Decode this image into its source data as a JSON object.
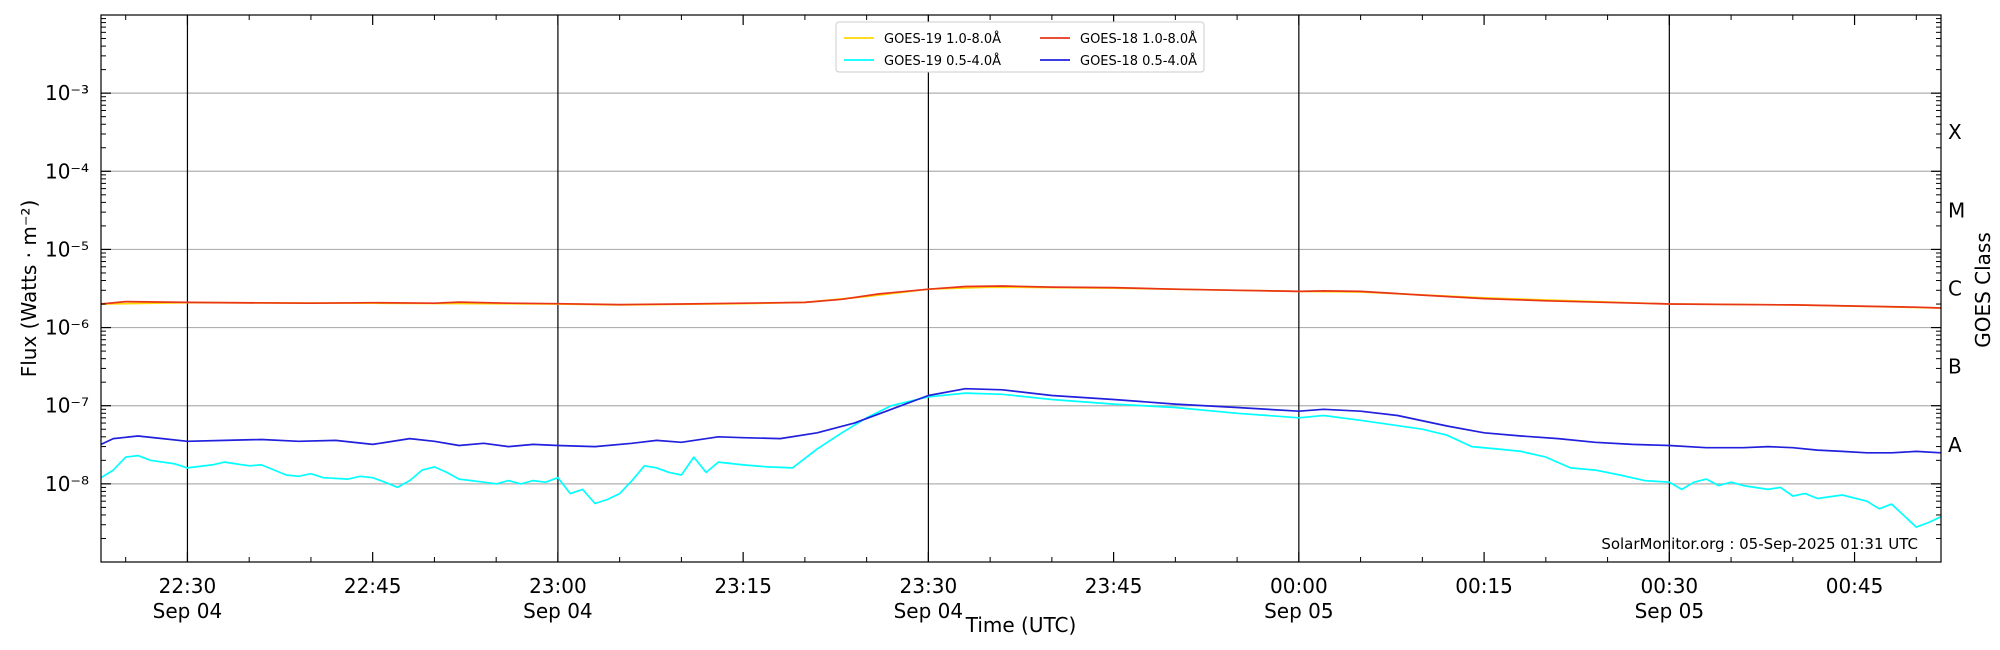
{
  "chart_data": {
    "type": "line",
    "title": "",
    "xlabel": "Time (UTC)",
    "ylabel": "Flux (Watts · m⁻²)",
    "ylabel_right": "GOES Class",
    "y_scale": "log",
    "ylim": [
      1e-09,
      0.01
    ],
    "xlim": [
      "2025-09-04T22:23",
      "2025-09-05T00:52"
    ],
    "grid": "horizontal at decades",
    "legend_placement": "top-center",
    "y_ticks": [
      {
        "value": 1e-08,
        "label": "10⁻⁸"
      },
      {
        "value": 1e-07,
        "label": "10⁻⁷"
      },
      {
        "value": 1e-06,
        "label": "10⁻⁶"
      },
      {
        "value": 1e-05,
        "label": "10⁻⁵"
      },
      {
        "value": 0.0001,
        "label": "10⁻⁴"
      },
      {
        "value": 0.001,
        "label": "10⁻³"
      }
    ],
    "goes_classes": [
      {
        "label": "A",
        "value": 1e-08
      },
      {
        "label": "B",
        "value": 1e-07
      },
      {
        "label": "C",
        "value": 1e-06
      },
      {
        "label": "M",
        "value": 1e-05
      },
      {
        "label": "X",
        "value": 0.0001
      }
    ],
    "x_ticks": [
      {
        "time": "22:30",
        "label": "22:30",
        "date": "Sep 04",
        "major": true
      },
      {
        "time": "22:45",
        "label": "22:45",
        "date": "",
        "major": false
      },
      {
        "time": "23:00",
        "label": "23:00",
        "date": "Sep 04",
        "major": true
      },
      {
        "time": "23:15",
        "label": "23:15",
        "date": "",
        "major": false
      },
      {
        "time": "23:30",
        "label": "23:30",
        "date": "Sep 04",
        "major": true
      },
      {
        "time": "23:45",
        "label": "23:45",
        "date": "",
        "major": false
      },
      {
        "time": "00:00",
        "label": "00:00",
        "date": "Sep 05",
        "major": true
      },
      {
        "time": "00:15",
        "label": "00:15",
        "date": "",
        "major": false
      },
      {
        "time": "00:30",
        "label": "00:30",
        "date": "Sep 05",
        "major": true
      },
      {
        "time": "00:45",
        "label": "00:45",
        "date": "",
        "major": false
      }
    ],
    "series": [
      {
        "name": "GOES-19 1.0-8.0Å",
        "color": "#FFD700",
        "points": [
          [
            "22:23",
            2e-06
          ],
          [
            "22:30",
            2.08e-06
          ],
          [
            "22:45",
            2.05e-06
          ],
          [
            "23:00",
            2e-06
          ],
          [
            "23:05",
            1.95e-06
          ],
          [
            "23:15",
            2.02e-06
          ],
          [
            "23:20",
            2.1e-06
          ],
          [
            "23:25",
            2.5e-06
          ],
          [
            "23:30",
            3.1e-06
          ],
          [
            "23:35",
            3.3e-06
          ],
          [
            "23:45",
            3.2e-06
          ],
          [
            "23:55",
            3e-06
          ],
          [
            "00:00",
            2.9e-06
          ],
          [
            "00:05",
            2.85e-06
          ],
          [
            "00:15",
            2.4e-06
          ],
          [
            "00:30",
            2e-06
          ],
          [
            "00:40",
            1.95e-06
          ],
          [
            "00:52",
            1.78e-06
          ]
        ]
      },
      {
        "name": "GOES-18 1.0-8.0Å",
        "color": "#E8351A",
        "points": [
          [
            "22:23",
            2e-06
          ],
          [
            "22:25",
            2.15e-06
          ],
          [
            "22:30",
            2.1e-06
          ],
          [
            "22:40",
            2.05e-06
          ],
          [
            "22:45",
            2.08e-06
          ],
          [
            "22:50",
            2.05e-06
          ],
          [
            "22:52",
            2.12e-06
          ],
          [
            "22:56",
            2.05e-06
          ],
          [
            "23:00",
            2.02e-06
          ],
          [
            "23:05",
            1.97e-06
          ],
          [
            "23:10",
            2e-06
          ],
          [
            "23:15",
            2.05e-06
          ],
          [
            "23:20",
            2.1e-06
          ],
          [
            "23:23",
            2.3e-06
          ],
          [
            "23:26",
            2.7e-06
          ],
          [
            "23:30",
            3.1e-06
          ],
          [
            "23:33",
            3.35e-06
          ],
          [
            "23:36",
            3.4e-06
          ],
          [
            "23:40",
            3.3e-06
          ],
          [
            "23:45",
            3.25e-06
          ],
          [
            "23:50",
            3.1e-06
          ],
          [
            "23:55",
            3e-06
          ],
          [
            "00:00",
            2.9e-06
          ],
          [
            "00:02",
            2.95e-06
          ],
          [
            "00:05",
            2.9e-06
          ],
          [
            "00:10",
            2.6e-06
          ],
          [
            "00:15",
            2.35e-06
          ],
          [
            "00:20",
            2.2e-06
          ],
          [
            "00:30",
            2e-06
          ],
          [
            "00:40",
            1.95e-06
          ],
          [
            "00:50",
            1.82e-06
          ],
          [
            "00:52",
            1.78e-06
          ]
        ]
      },
      {
        "name": "GOES-19 0.5-4.0Å",
        "color": "#00FFFF",
        "points": [
          [
            "22:23",
            1.2e-08
          ],
          [
            "22:24",
            1.5e-08
          ],
          [
            "22:25",
            2.2e-08
          ],
          [
            "22:26",
            2.3e-08
          ],
          [
            "22:27",
            2e-08
          ],
          [
            "22:29",
            1.8e-08
          ],
          [
            "22:30",
            1.6e-08
          ],
          [
            "22:32",
            1.75e-08
          ],
          [
            "22:33",
            1.9e-08
          ],
          [
            "22:35",
            1.7e-08
          ],
          [
            "22:36",
            1.75e-08
          ],
          [
            "22:38",
            1.3e-08
          ],
          [
            "22:39",
            1.25e-08
          ],
          [
            "22:40",
            1.35e-08
          ],
          [
            "22:41",
            1.2e-08
          ],
          [
            "22:43",
            1.15e-08
          ],
          [
            "22:44",
            1.25e-08
          ],
          [
            "22:45",
            1.2e-08
          ],
          [
            "22:46",
            1.05e-08
          ],
          [
            "22:47",
            9e-09
          ],
          [
            "22:48",
            1.1e-08
          ],
          [
            "22:49",
            1.5e-08
          ],
          [
            "22:50",
            1.65e-08
          ],
          [
            "22:51",
            1.4e-08
          ],
          [
            "22:52",
            1.15e-08
          ],
          [
            "22:54",
            1.05e-08
          ],
          [
            "22:55",
            1e-08
          ],
          [
            "22:56",
            1.1e-08
          ],
          [
            "22:57",
            1e-08
          ],
          [
            "22:58",
            1.1e-08
          ],
          [
            "22:59",
            1.05e-08
          ],
          [
            "23:00",
            1.2e-08
          ],
          [
            "23:01",
            7.5e-09
          ],
          [
            "23:02",
            8.5e-09
          ],
          [
            "23:03",
            5.6e-09
          ],
          [
            "23:04",
            6.3e-09
          ],
          [
            "23:05",
            7.5e-09
          ],
          [
            "23:06",
            1.1e-08
          ],
          [
            "23:07",
            1.7e-08
          ],
          [
            "23:08",
            1.6e-08
          ],
          [
            "23:09",
            1.4e-08
          ],
          [
            "23:10",
            1.3e-08
          ],
          [
            "23:11",
            2.2e-08
          ],
          [
            "23:12",
            1.4e-08
          ],
          [
            "23:13",
            1.9e-08
          ],
          [
            "23:15",
            1.75e-08
          ],
          [
            "23:17",
            1.65e-08
          ],
          [
            "23:19",
            1.6e-08
          ],
          [
            "23:21",
            2.8e-08
          ],
          [
            "23:23",
            4.5e-08
          ],
          [
            "23:25",
            7e-08
          ],
          [
            "23:27",
            1e-07
          ],
          [
            "23:30",
            1.3e-07
          ],
          [
            "23:33",
            1.45e-07
          ],
          [
            "23:36",
            1.4e-07
          ],
          [
            "23:40",
            1.2e-07
          ],
          [
            "23:45",
            1.05e-07
          ],
          [
            "23:50",
            9.5e-08
          ],
          [
            "23:55",
            8e-08
          ],
          [
            "00:00",
            7e-08
          ],
          [
            "00:02",
            7.5e-08
          ],
          [
            "00:05",
            6.5e-08
          ],
          [
            "00:10",
            5e-08
          ],
          [
            "00:12",
            4.2e-08
          ],
          [
            "00:14",
            3e-08
          ],
          [
            "00:16",
            2.8e-08
          ],
          [
            "00:18",
            2.6e-08
          ],
          [
            "00:20",
            2.2e-08
          ],
          [
            "00:22",
            1.6e-08
          ],
          [
            "00:24",
            1.5e-08
          ],
          [
            "00:26",
            1.3e-08
          ],
          [
            "00:28",
            1.1e-08
          ],
          [
            "00:30",
            1.05e-08
          ],
          [
            "00:31",
            8.5e-09
          ],
          [
            "00:32",
            1.05e-08
          ],
          [
            "00:33",
            1.15e-08
          ],
          [
            "00:34",
            9.5e-09
          ],
          [
            "00:35",
            1.05e-08
          ],
          [
            "00:36",
            9.5e-09
          ],
          [
            "00:38",
            8.5e-09
          ],
          [
            "00:39",
            9e-09
          ],
          [
            "00:40",
            7e-09
          ],
          [
            "00:41",
            7.5e-09
          ],
          [
            "00:42",
            6.5e-09
          ],
          [
            "00:44",
            7.2e-09
          ],
          [
            "00:46",
            6e-09
          ],
          [
            "00:47",
            4.8e-09
          ],
          [
            "00:48",
            5.5e-09
          ],
          [
            "00:50",
            2.8e-09
          ],
          [
            "00:51",
            3.2e-09
          ],
          [
            "00:52",
            3.8e-09
          ]
        ]
      },
      {
        "name": "GOES-18 0.5-4.0Å",
        "color": "#2020DD",
        "points": [
          [
            "22:23",
            3.2e-08
          ],
          [
            "22:24",
            3.8e-08
          ],
          [
            "22:26",
            4.1e-08
          ],
          [
            "22:28",
            3.8e-08
          ],
          [
            "22:30",
            3.5e-08
          ],
          [
            "22:33",
            3.6e-08
          ],
          [
            "22:36",
            3.7e-08
          ],
          [
            "22:39",
            3.5e-08
          ],
          [
            "22:42",
            3.6e-08
          ],
          [
            "22:45",
            3.2e-08
          ],
          [
            "22:48",
            3.8e-08
          ],
          [
            "22:50",
            3.5e-08
          ],
          [
            "22:52",
            3.1e-08
          ],
          [
            "22:54",
            3.3e-08
          ],
          [
            "22:56",
            3e-08
          ],
          [
            "22:58",
            3.2e-08
          ],
          [
            "23:00",
            3.1e-08
          ],
          [
            "23:03",
            3e-08
          ],
          [
            "23:06",
            3.3e-08
          ],
          [
            "23:08",
            3.6e-08
          ],
          [
            "23:10",
            3.4e-08
          ],
          [
            "23:13",
            4e-08
          ],
          [
            "23:15",
            3.9e-08
          ],
          [
            "23:18",
            3.8e-08
          ],
          [
            "23:21",
            4.5e-08
          ],
          [
            "23:24",
            6e-08
          ],
          [
            "23:27",
            9e-08
          ],
          [
            "23:30",
            1.35e-07
          ],
          [
            "23:33",
            1.65e-07
          ],
          [
            "23:36",
            1.6e-07
          ],
          [
            "23:40",
            1.35e-07
          ],
          [
            "23:45",
            1.2e-07
          ],
          [
            "23:50",
            1.05e-07
          ],
          [
            "23:55",
            9.5e-08
          ],
          [
            "00:00",
            8.5e-08
          ],
          [
            "00:02",
            9e-08
          ],
          [
            "00:05",
            8.5e-08
          ],
          [
            "00:08",
            7.5e-08
          ],
          [
            "00:12",
            5.5e-08
          ],
          [
            "00:15",
            4.5e-08
          ],
          [
            "00:18",
            4.1e-08
          ],
          [
            "00:21",
            3.8e-08
          ],
          [
            "00:24",
            3.4e-08
          ],
          [
            "00:27",
            3.2e-08
          ],
          [
            "00:30",
            3.1e-08
          ],
          [
            "00:33",
            2.9e-08
          ],
          [
            "00:36",
            2.9e-08
          ],
          [
            "00:38",
            3e-08
          ],
          [
            "00:40",
            2.9e-08
          ],
          [
            "00:42",
            2.7e-08
          ],
          [
            "00:44",
            2.6e-08
          ],
          [
            "00:46",
            2.5e-08
          ],
          [
            "00:48",
            2.5e-08
          ],
          [
            "00:50",
            2.6e-08
          ],
          [
            "00:52",
            2.5e-08
          ]
        ]
      }
    ],
    "annotation": "SolarMonitor.org : 05-Sep-2025 01:31 UTC"
  }
}
